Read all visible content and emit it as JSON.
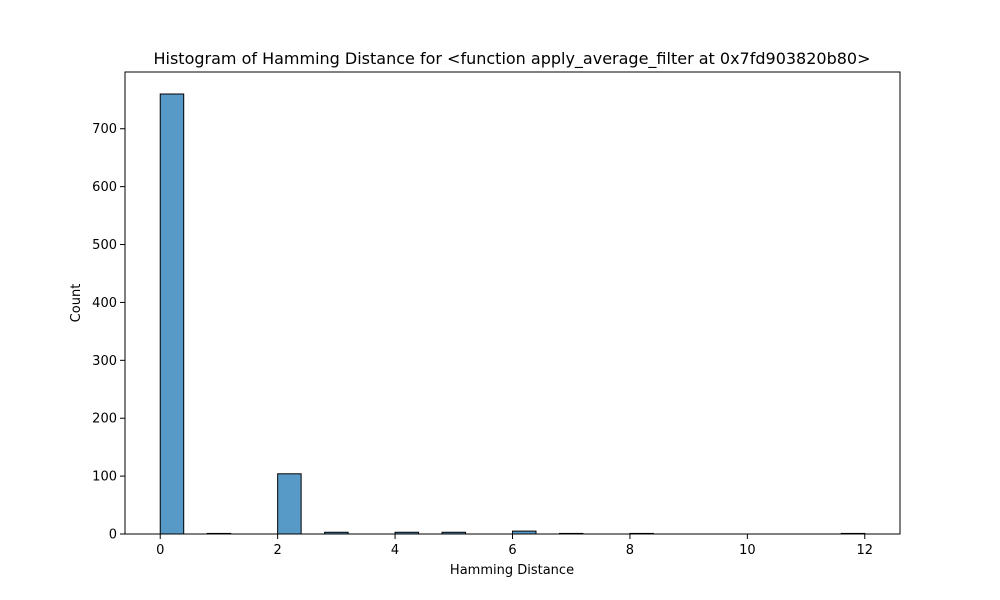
{
  "chart_data": {
    "type": "bar",
    "title": "Histogram of Hamming Distance for <function apply_average_filter at 0x7fd903820b80>",
    "xlabel": "Hamming Distance",
    "ylabel": "Count",
    "xlim": [
      -0.6,
      12.6
    ],
    "ylim": [
      0,
      798
    ],
    "xticks": [
      0,
      2,
      4,
      6,
      8,
      10,
      12
    ],
    "yticks": [
      0,
      100,
      200,
      300,
      400,
      500,
      600,
      700
    ],
    "bin_width": 0.4,
    "bins": [
      {
        "x0": 0.0,
        "x1": 0.4,
        "count": 760
      },
      {
        "x0": 0.8,
        "x1": 1.2,
        "count": 1
      },
      {
        "x0": 2.0,
        "x1": 2.4,
        "count": 104
      },
      {
        "x0": 2.8,
        "x1": 3.2,
        "count": 3
      },
      {
        "x0": 4.0,
        "x1": 4.4,
        "count": 3
      },
      {
        "x0": 4.8,
        "x1": 5.2,
        "count": 3
      },
      {
        "x0": 6.0,
        "x1": 6.4,
        "count": 5
      },
      {
        "x0": 6.8,
        "x1": 7.2,
        "count": 1
      },
      {
        "x0": 8.0,
        "x1": 8.4,
        "count": 1
      },
      {
        "x0": 11.6,
        "x1": 12.0,
        "count": 1
      }
    ],
    "bar_color": "#5799c7",
    "edge_color": "#000000",
    "grid": false,
    "legend": "none"
  }
}
